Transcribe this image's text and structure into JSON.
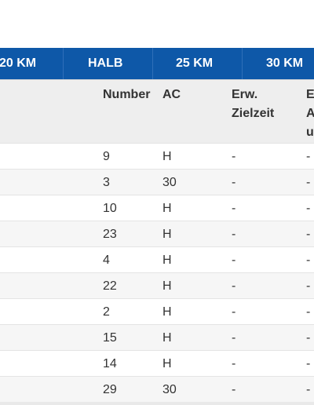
{
  "tabs": [
    {
      "label": "20 KM"
    },
    {
      "label": "HALB"
    },
    {
      "label": "25 KM"
    },
    {
      "label": "30 KM"
    }
  ],
  "header": {
    "number": "Number",
    "ac": "AC",
    "erw_line1": "Erw.",
    "erw_line2": "Zielzeit",
    "col5_line1": "E",
    "col5_line2": "A",
    "col5_line3": "u"
  },
  "rows": [
    {
      "number": "9",
      "ac": "H",
      "erw": "-",
      "col5": "-"
    },
    {
      "number": "3",
      "ac": "30",
      "erw": "-",
      "col5": "-"
    },
    {
      "number": "10",
      "ac": "H",
      "erw": "-",
      "col5": "-"
    },
    {
      "number": "23",
      "ac": "H",
      "erw": "-",
      "col5": "-"
    },
    {
      "number": "4",
      "ac": "H",
      "erw": "-",
      "col5": "-"
    },
    {
      "number": "22",
      "ac": "H",
      "erw": "-",
      "col5": "-"
    },
    {
      "number": "2",
      "ac": "H",
      "erw": "-",
      "col5": "-"
    },
    {
      "number": "15",
      "ac": "H",
      "erw": "-",
      "col5": "-"
    },
    {
      "number": "14",
      "ac": "H",
      "erw": "-",
      "col5": "-"
    },
    {
      "number": "29",
      "ac": "30",
      "erw": "-",
      "col5": "-"
    }
  ],
  "colors": {
    "tabbar_bg": "#0e58a8",
    "tab_text": "#ffffff",
    "header_bg": "#eeeeee",
    "row_alt_bg": "#f6f6f6"
  }
}
